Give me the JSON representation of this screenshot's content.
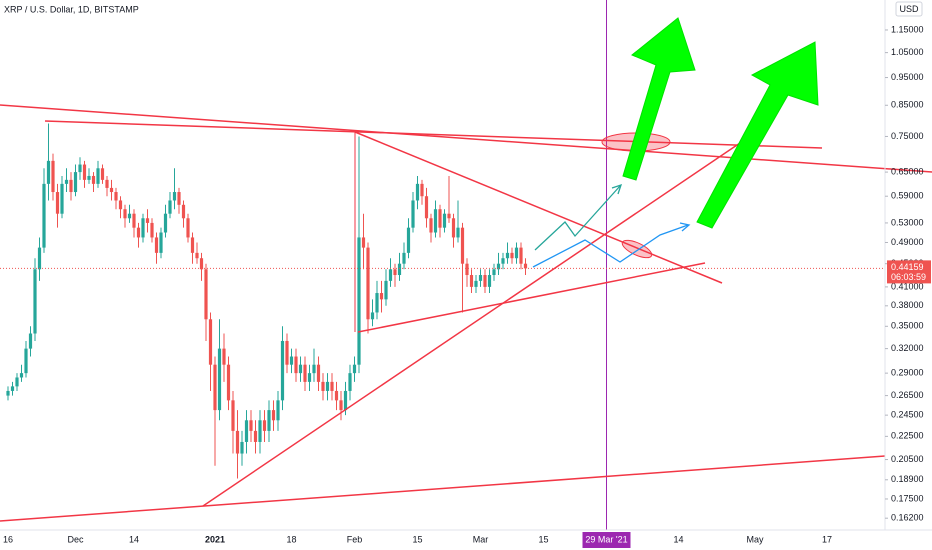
{
  "chart_data": {
    "type": "candlestick",
    "title": "XRP / U.S. Dollar, 1D, BITSTAMP",
    "currency": "USD",
    "countdown": "06:03:59",
    "log_scale": true,
    "grid": false,
    "up_color": "#26a69a",
    "down_color": "#ef5350",
    "ylim": [
      0.1545,
      1.297
    ],
    "yticks": [
      {
        "value": 1.15,
        "label": "1.15000"
      },
      {
        "value": 1.05,
        "label": "1.05000"
      },
      {
        "value": 0.95,
        "label": "0.95000"
      },
      {
        "value": 0.85,
        "label": "0.85000"
      },
      {
        "value": 0.75,
        "label": "0.75000"
      },
      {
        "value": 0.65,
        "label": "0.65000"
      },
      {
        "value": 0.59,
        "label": "0.59000"
      },
      {
        "value": 0.53,
        "label": "0.53000"
      },
      {
        "value": 0.49,
        "label": "0.49000"
      },
      {
        "value": 0.45,
        "label": "0.45000"
      },
      {
        "value": 0.41,
        "label": "0.41000"
      },
      {
        "value": 0.38,
        "label": "0.38000"
      },
      {
        "value": 0.35,
        "label": "0.35000"
      },
      {
        "value": 0.32,
        "label": "0.32000"
      },
      {
        "value": 0.29,
        "label": "0.29000"
      },
      {
        "value": 0.265,
        "label": "0.26500"
      },
      {
        "value": 0.245,
        "label": "0.24500"
      },
      {
        "value": 0.225,
        "label": "0.22500"
      },
      {
        "value": 0.205,
        "label": "0.20500"
      },
      {
        "value": 0.189,
        "label": "0.18900"
      },
      {
        "value": 0.175,
        "label": "0.17500"
      },
      {
        "value": 0.162,
        "label": "0.16200"
      }
    ],
    "categories": [
      "16",
      null,
      null,
      null,
      null,
      null,
      null,
      null,
      null,
      null,
      null,
      null,
      null,
      null,
      null,
      "Dec",
      null,
      null,
      null,
      null,
      null,
      null,
      null,
      null,
      null,
      null,
      null,
      null,
      "14",
      null,
      null,
      null,
      null,
      null,
      null,
      null,
      null,
      null,
      null,
      null,
      null,
      null,
      null,
      null,
      null,
      null,
      "2021",
      null,
      null,
      null,
      null,
      null,
      null,
      null,
      null,
      null,
      null,
      null,
      null,
      null,
      null,
      null,
      null,
      "18",
      null,
      null,
      null,
      null,
      null,
      null,
      null,
      null,
      null,
      null,
      null,
      null,
      null,
      "Feb",
      null,
      null,
      null,
      null,
      null,
      null,
      null,
      null,
      null,
      null,
      null,
      null,
      null,
      "15",
      null,
      null,
      null,
      null,
      null,
      null,
      null,
      null,
      null,
      null,
      null,
      null,
      null,
      "Mar",
      null,
      null,
      null,
      null,
      null,
      null,
      null,
      null,
      null,
      null,
      null,
      null,
      null,
      "15",
      null,
      null,
      null,
      null,
      null,
      null,
      null,
      null,
      null,
      null,
      null,
      null,
      null,
      "29 Mar '21",
      null,
      null,
      null,
      null,
      null,
      null,
      null,
      null,
      null,
      null,
      null,
      null,
      null,
      null,
      null,
      "14",
      null,
      null,
      null,
      null,
      null,
      null,
      null,
      null,
      null,
      null,
      null,
      null,
      null,
      null,
      null,
      null,
      "May",
      null,
      null,
      null,
      null,
      null,
      null,
      null,
      null,
      null,
      null,
      null,
      null,
      null,
      null,
      null,
      "17",
      null,
      null,
      null,
      null,
      null,
      null,
      null,
      null,
      null,
      null,
      null,
      null
    ],
    "candles": [
      [
        0.265,
        0.275,
        0.26,
        0.27
      ],
      [
        0.27,
        0.28,
        0.265,
        0.275
      ],
      [
        0.275,
        0.29,
        0.27,
        0.285
      ],
      [
        0.285,
        0.3,
        0.28,
        0.29
      ],
      [
        0.29,
        0.33,
        0.285,
        0.32
      ],
      [
        0.32,
        0.35,
        0.31,
        0.34
      ],
      [
        0.34,
        0.46,
        0.33,
        0.44
      ],
      [
        0.44,
        0.5,
        0.42,
        0.48
      ],
      [
        0.48,
        0.66,
        0.47,
        0.62
      ],
      [
        0.62,
        0.79,
        0.58,
        0.68
      ],
      [
        0.68,
        0.7,
        0.58,
        0.6
      ],
      [
        0.6,
        0.62,
        0.52,
        0.55
      ],
      [
        0.55,
        0.64,
        0.54,
        0.62
      ],
      [
        0.62,
        0.66,
        0.6,
        0.63
      ],
      [
        0.63,
        0.65,
        0.58,
        0.6
      ],
      [
        0.6,
        0.67,
        0.59,
        0.65
      ],
      [
        0.65,
        0.69,
        0.63,
        0.67
      ],
      [
        0.67,
        0.68,
        0.61,
        0.63
      ],
      [
        0.63,
        0.66,
        0.62,
        0.64
      ],
      [
        0.64,
        0.65,
        0.6,
        0.62
      ],
      [
        0.62,
        0.68,
        0.61,
        0.66
      ],
      [
        0.66,
        0.67,
        0.62,
        0.63
      ],
      [
        0.63,
        0.64,
        0.59,
        0.61
      ],
      [
        0.61,
        0.63,
        0.58,
        0.6
      ],
      [
        0.6,
        0.61,
        0.56,
        0.58
      ],
      [
        0.58,
        0.59,
        0.54,
        0.56
      ],
      [
        0.56,
        0.57,
        0.52,
        0.54
      ],
      [
        0.54,
        0.57,
        0.53,
        0.55
      ],
      [
        0.55,
        0.56,
        0.5,
        0.52
      ],
      [
        0.52,
        0.53,
        0.48,
        0.5
      ],
      [
        0.5,
        0.55,
        0.49,
        0.54
      ],
      [
        0.54,
        0.56,
        0.51,
        0.53
      ],
      [
        0.53,
        0.54,
        0.49,
        0.5
      ],
      [
        0.5,
        0.51,
        0.45,
        0.47
      ],
      [
        0.47,
        0.52,
        0.46,
        0.51
      ],
      [
        0.51,
        0.57,
        0.5,
        0.55
      ],
      [
        0.55,
        0.6,
        0.54,
        0.58
      ],
      [
        0.58,
        0.66,
        0.56,
        0.6
      ],
      [
        0.6,
        0.61,
        0.55,
        0.57
      ],
      [
        0.57,
        0.58,
        0.52,
        0.54
      ],
      [
        0.54,
        0.55,
        0.49,
        0.5
      ],
      [
        0.5,
        0.51,
        0.45,
        0.47
      ],
      [
        0.47,
        0.49,
        0.45,
        0.46
      ],
      [
        0.46,
        0.47,
        0.42,
        0.44
      ],
      [
        0.44,
        0.45,
        0.33,
        0.36
      ],
      [
        0.36,
        0.37,
        0.27,
        0.3
      ],
      [
        0.3,
        0.31,
        0.2,
        0.25
      ],
      [
        0.25,
        0.36,
        0.24,
        0.32
      ],
      [
        0.32,
        0.34,
        0.28,
        0.3
      ],
      [
        0.3,
        0.31,
        0.25,
        0.26
      ],
      [
        0.26,
        0.27,
        0.21,
        0.23
      ],
      [
        0.23,
        0.25,
        0.19,
        0.21
      ],
      [
        0.21,
        0.23,
        0.2,
        0.22
      ],
      [
        0.22,
        0.25,
        0.21,
        0.24
      ],
      [
        0.24,
        0.25,
        0.22,
        0.23
      ],
      [
        0.23,
        0.24,
        0.21,
        0.22
      ],
      [
        0.22,
        0.25,
        0.21,
        0.24
      ],
      [
        0.24,
        0.25,
        0.22,
        0.23
      ],
      [
        0.23,
        0.26,
        0.22,
        0.25
      ],
      [
        0.25,
        0.26,
        0.23,
        0.24
      ],
      [
        0.24,
        0.27,
        0.23,
        0.26
      ],
      [
        0.26,
        0.35,
        0.25,
        0.33
      ],
      [
        0.33,
        0.34,
        0.29,
        0.3
      ],
      [
        0.3,
        0.32,
        0.29,
        0.31
      ],
      [
        0.31,
        0.32,
        0.28,
        0.29
      ],
      [
        0.29,
        0.31,
        0.28,
        0.3
      ],
      [
        0.3,
        0.31,
        0.27,
        0.28
      ],
      [
        0.28,
        0.3,
        0.27,
        0.29
      ],
      [
        0.29,
        0.32,
        0.28,
        0.3
      ],
      [
        0.3,
        0.31,
        0.27,
        0.28
      ],
      [
        0.28,
        0.29,
        0.26,
        0.27
      ],
      [
        0.27,
        0.29,
        0.26,
        0.28
      ],
      [
        0.28,
        0.29,
        0.26,
        0.27
      ],
      [
        0.27,
        0.28,
        0.25,
        0.26
      ],
      [
        0.26,
        0.27,
        0.24,
        0.25
      ],
      [
        0.25,
        0.28,
        0.245,
        0.27
      ],
      [
        0.27,
        0.3,
        0.26,
        0.29
      ],
      [
        0.29,
        0.31,
        0.28,
        0.3
      ],
      [
        0.3,
        0.75,
        0.29,
        0.5
      ],
      [
        0.5,
        0.55,
        0.44,
        0.48
      ],
      [
        0.48,
        0.49,
        0.34,
        0.36
      ],
      [
        0.36,
        0.39,
        0.35,
        0.37
      ],
      [
        0.37,
        0.42,
        0.36,
        0.4
      ],
      [
        0.4,
        0.42,
        0.37,
        0.39
      ],
      [
        0.39,
        0.44,
        0.38,
        0.42
      ],
      [
        0.42,
        0.46,
        0.41,
        0.44
      ],
      [
        0.44,
        0.45,
        0.41,
        0.43
      ],
      [
        0.43,
        0.47,
        0.42,
        0.45
      ],
      [
        0.45,
        0.49,
        0.44,
        0.47
      ],
      [
        0.47,
        0.54,
        0.46,
        0.52
      ],
      [
        0.52,
        0.6,
        0.51,
        0.58
      ],
      [
        0.58,
        0.64,
        0.56,
        0.62
      ],
      [
        0.62,
        0.63,
        0.57,
        0.59
      ],
      [
        0.59,
        0.61,
        0.52,
        0.54
      ],
      [
        0.54,
        0.55,
        0.49,
        0.51
      ],
      [
        0.51,
        0.58,
        0.5,
        0.56
      ],
      [
        0.56,
        0.57,
        0.5,
        0.52
      ],
      [
        0.52,
        0.56,
        0.51,
        0.55
      ],
      [
        0.55,
        0.64,
        0.53,
        0.54
      ],
      [
        0.54,
        0.55,
        0.48,
        0.5
      ],
      [
        0.5,
        0.58,
        0.49,
        0.52
      ],
      [
        0.52,
        0.53,
        0.37,
        0.45
      ],
      [
        0.45,
        0.46,
        0.41,
        0.43
      ],
      [
        0.43,
        0.44,
        0.4,
        0.41
      ],
      [
        0.41,
        0.43,
        0.4,
        0.42
      ],
      [
        0.42,
        0.44,
        0.41,
        0.43
      ],
      [
        0.43,
        0.44,
        0.4,
        0.41
      ],
      [
        0.41,
        0.44,
        0.4,
        0.43
      ],
      [
        0.43,
        0.45,
        0.42,
        0.44
      ],
      [
        0.44,
        0.47,
        0.43,
        0.45
      ],
      [
        0.45,
        0.47,
        0.44,
        0.46
      ],
      [
        0.46,
        0.49,
        0.45,
        0.47
      ],
      [
        0.47,
        0.48,
        0.45,
        0.46
      ],
      [
        0.46,
        0.49,
        0.45,
        0.48
      ],
      [
        0.48,
        0.49,
        0.44,
        0.45
      ],
      [
        0.45,
        0.46,
        0.43,
        0.44159
      ],
      null,
      null,
      null,
      null,
      null,
      null,
      null,
      null,
      null,
      null,
      null,
      null,
      null,
      null,
      null,
      null,
      null,
      null,
      null,
      null,
      null,
      null,
      null,
      null,
      null,
      null,
      null,
      null,
      null,
      null,
      null,
      null,
      null,
      null,
      null,
      null,
      null,
      null,
      null,
      null,
      null,
      null,
      null,
      null,
      null,
      null,
      null,
      null,
      null,
      null,
      null,
      null,
      null,
      null,
      null,
      null,
      null,
      null,
      null,
      null,
      null,
      null,
      null,
      null,
      null,
      null,
      null,
      null,
      null,
      null,
      null,
      null,
      null,
      null,
      null,
      null,
      null,
      null,
      null
    ]
  }
}
